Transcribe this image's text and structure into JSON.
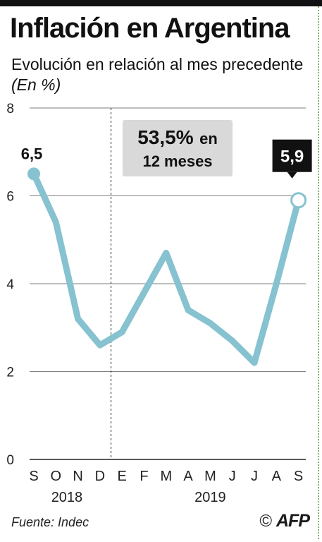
{
  "header": {
    "title": "Inflación en Argentina",
    "subtitle": "Evolución en relación al mes precedente",
    "unit": "(En %)"
  },
  "annotation": {
    "line1_value": "53,5%",
    "line1_text": "en",
    "line2": "12 meses"
  },
  "footer": {
    "source": "Fuente: Indec",
    "copyright": "©",
    "logo": "AFP"
  },
  "colors": {
    "line": "#86c2d0",
    "grid": "#555555",
    "annotation_bg": "#d9d9d9",
    "callout_bg": "#111111"
  },
  "chart_data": {
    "type": "line",
    "title": "Inflación en Argentina",
    "subtitle": "Evolución en relación al mes precedente (En %)",
    "categories": [
      "S",
      "O",
      "N",
      "D",
      "E",
      "F",
      "M",
      "A",
      "M",
      "J",
      "J",
      "A",
      "S"
    ],
    "year_labels": [
      {
        "label": "2018",
        "start": 0,
        "end": 3
      },
      {
        "label": "2019",
        "start": 4,
        "end": 12
      }
    ],
    "divider_after_index": 3,
    "series": [
      {
        "values": [
          6.5,
          5.4,
          3.2,
          2.6,
          2.9,
          3.8,
          4.7,
          3.4,
          3.1,
          2.7,
          2.2,
          4.0,
          5.9
        ]
      }
    ],
    "data_labels": [
      {
        "index": 0,
        "text": "6,5",
        "style": "plain"
      },
      {
        "index": 12,
        "text": "5,9",
        "style": "callout"
      }
    ],
    "ylim": [
      0,
      8
    ],
    "yticks": [
      0,
      2,
      4,
      6,
      8
    ],
    "grid": true
  }
}
